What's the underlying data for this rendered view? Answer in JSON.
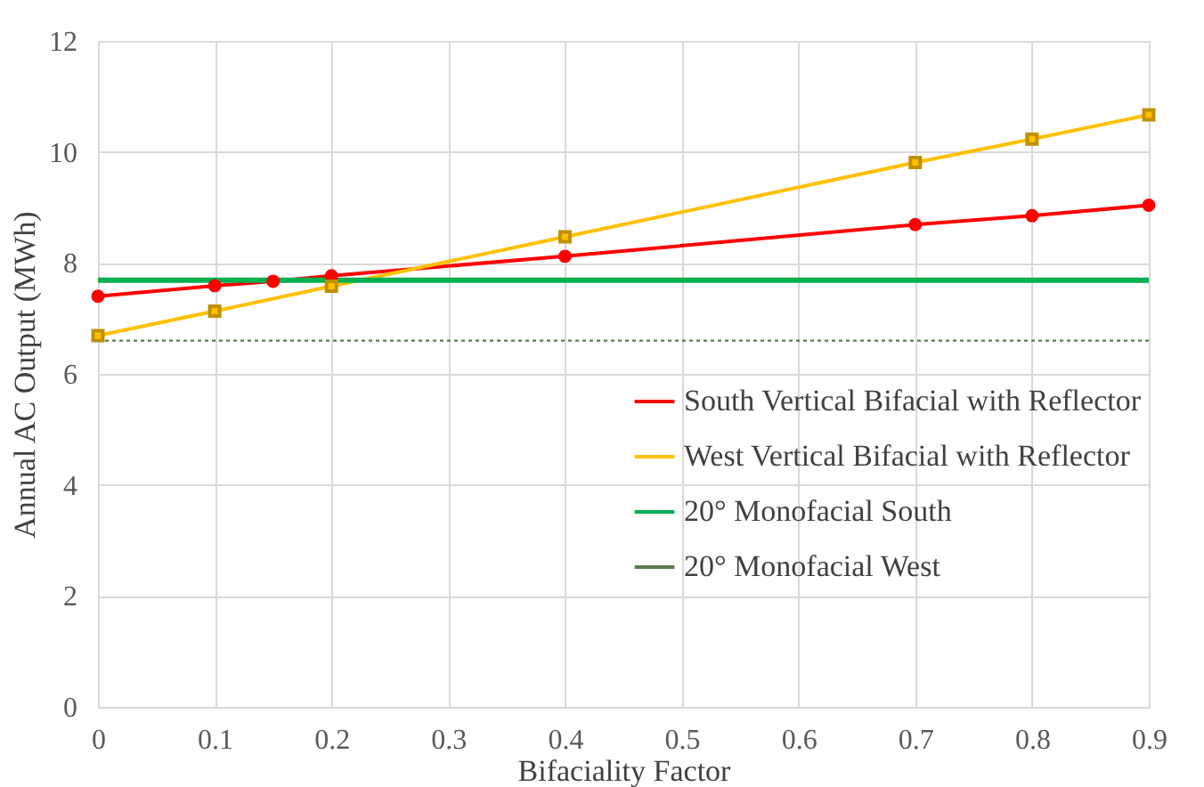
{
  "chart_data": {
    "type": "line",
    "xlabel": "Bifaciality Factor",
    "ylabel": "Annual AC Output (MWh)",
    "xlim": [
      0,
      0.9
    ],
    "xticks": [
      0,
      0.1,
      0.2,
      0.3,
      0.4,
      0.5,
      0.6,
      0.7,
      0.8,
      0.9
    ],
    "ylim": [
      0,
      12
    ],
    "yticks": [
      0,
      2,
      4,
      6,
      8,
      10,
      12
    ],
    "grid": true,
    "legend": "bottom right",
    "series": [
      {
        "name": "South Vertical Bifacial with Reflector",
        "color": "#ff0000",
        "marker": "circle",
        "line_style": "solid",
        "x": [
          0,
          0.1,
          0.15,
          0.2,
          0.4,
          0.7,
          0.8,
          0.9
        ],
        "values": [
          7.4,
          7.59,
          7.67,
          7.77,
          8.12,
          8.69,
          8.85,
          9.04
        ]
      },
      {
        "name": "West Vertical Bifacial with Reflector",
        "color": "#ffc000",
        "marker": "square",
        "line_style": "solid",
        "x": [
          0,
          0.1,
          0.2,
          0.4,
          0.7,
          0.8,
          0.9
        ],
        "values": [
          6.69,
          7.13,
          7.58,
          8.47,
          9.81,
          10.23,
          10.67
        ]
      },
      {
        "name": "20° Monofacial South",
        "color": "#00b050",
        "marker": "none",
        "line_style": "solid",
        "x": [
          0,
          0.9
        ],
        "values": [
          7.69,
          7.69
        ]
      },
      {
        "name": "20° Monofacial West",
        "color": "#5a7a50",
        "marker": "none",
        "line_style": "dotted",
        "x": [
          0,
          0.9
        ],
        "values": [
          6.6,
          6.6
        ]
      }
    ]
  }
}
